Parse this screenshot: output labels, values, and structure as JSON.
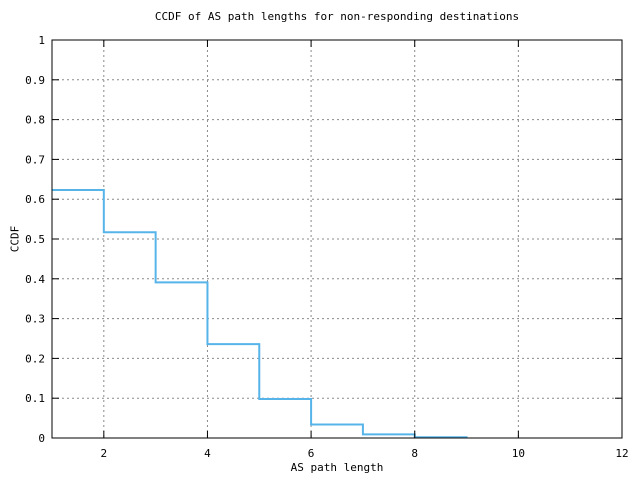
{
  "page": {
    "background": "#ffffff"
  },
  "chart_data": {
    "type": "line",
    "subtype": "step-ccdf",
    "title": "CCDF of AS path lengths for non-responding destinations",
    "xlabel": "AS path length",
    "ylabel": "CCDF",
    "xlim": [
      1,
      12
    ],
    "ylim": [
      0,
      1
    ],
    "grid": true,
    "legend_position": "none",
    "colors": {
      "line": "#56b4e9",
      "grid": "#8a8a8a",
      "axis": "#000000",
      "text": "#000000"
    },
    "xticks": [
      {
        "value": 2,
        "label": "2"
      },
      {
        "value": 4,
        "label": "4"
      },
      {
        "value": 6,
        "label": "6"
      },
      {
        "value": 8,
        "label": "8"
      },
      {
        "value": 10,
        "label": "10"
      },
      {
        "value": 12,
        "label": "12"
      }
    ],
    "yticks": [
      {
        "value": 0,
        "label": "0"
      },
      {
        "value": 0.1,
        "label": "0.1"
      },
      {
        "value": 0.2,
        "label": "0.2"
      },
      {
        "value": 0.3,
        "label": "0.3"
      },
      {
        "value": 0.4,
        "label": "0.4"
      },
      {
        "value": 0.5,
        "label": "0.5"
      },
      {
        "value": 0.6,
        "label": "0.6"
      },
      {
        "value": 0.7,
        "label": "0.7"
      },
      {
        "value": 0.8,
        "label": "0.8"
      },
      {
        "value": 0.9,
        "label": "0.9"
      },
      {
        "value": 1,
        "label": "1"
      }
    ],
    "series": [
      {
        "name": "ccdf",
        "color": "#56b4e9",
        "points": [
          {
            "x": 1,
            "y": 0.623
          },
          {
            "x": 2,
            "y": 0.517
          },
          {
            "x": 3,
            "y": 0.391
          },
          {
            "x": 4,
            "y": 0.236
          },
          {
            "x": 5,
            "y": 0.098
          },
          {
            "x": 6,
            "y": 0.034
          },
          {
            "x": 7,
            "y": 0.009
          },
          {
            "x": 8,
            "y": 0.002
          },
          {
            "x": 9,
            "y": 0
          }
        ]
      }
    ]
  }
}
